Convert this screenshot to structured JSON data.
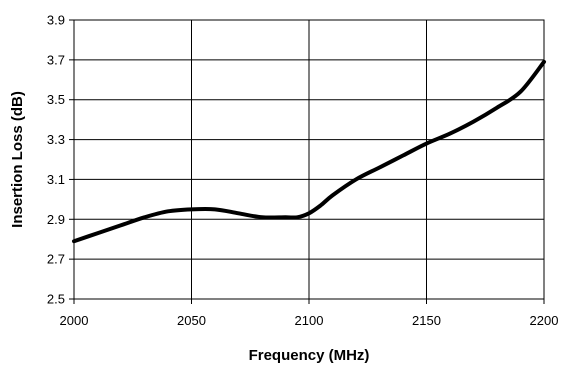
{
  "chart_data": {
    "type": "line",
    "title": "",
    "xlabel": "Frequency (MHz)",
    "ylabel": "Insertion Loss (dB)",
    "xlim": [
      2000,
      2200
    ],
    "ylim": [
      2.5,
      3.9
    ],
    "x_ticks": [
      2000,
      2050,
      2100,
      2150,
      2200
    ],
    "y_ticks": [
      "2.5",
      "2.7",
      "2.9",
      "3.1",
      "3.3",
      "3.5",
      "3.7",
      "3.9"
    ],
    "grid": "major gridlines on both axes",
    "legend": "none",
    "series": [
      {
        "color": "#000000",
        "x": [
          2000,
          2010,
          2020,
          2030,
          2040,
          2050,
          2060,
          2070,
          2080,
          2090,
          2095,
          2100,
          2105,
          2110,
          2120,
          2130,
          2140,
          2150,
          2160,
          2170,
          2180,
          2190,
          2200
        ],
        "y": [
          2.79,
          2.83,
          2.87,
          2.91,
          2.94,
          2.95,
          2.95,
          2.93,
          2.91,
          2.91,
          2.91,
          2.93,
          2.97,
          3.02,
          3.1,
          3.16,
          3.22,
          3.28,
          3.33,
          3.39,
          3.46,
          3.54,
          3.69
        ]
      }
    ]
  }
}
